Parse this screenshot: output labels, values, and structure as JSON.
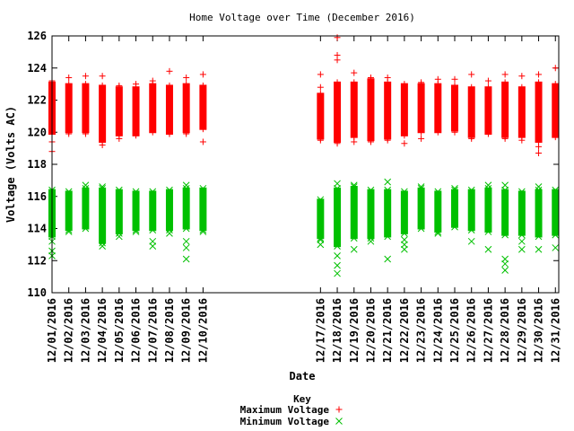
{
  "chart_data": {
    "type": "scatter",
    "title": "Home Voltage over Time (December 2016)",
    "xlabel": "Date",
    "ylabel": "Voltage (Volts AC)",
    "ylim": [
      110,
      126
    ],
    "yticks": [
      "110",
      "112",
      "114",
      "116",
      "118",
      "120",
      "122",
      "124",
      "126"
    ],
    "categories": [
      "12/01/2016",
      "12/02/2016",
      "12/03/2016",
      "12/04/2016",
      "12/05/2016",
      "12/06/2016",
      "12/07/2016",
      "12/08/2016",
      "12/09/2016",
      "12/10/2016",
      "12/17/2016",
      "12/18/2016",
      "12/19/2016",
      "12/20/2016",
      "12/21/2016",
      "12/22/2016",
      "12/23/2016",
      "12/24/2016",
      "12/25/2016",
      "12/26/2016",
      "12/27/2016",
      "12/28/2016",
      "12/29/2016",
      "12/30/2016",
      "12/31/2016"
    ],
    "x_day": [
      1,
      2,
      3,
      4,
      5,
      6,
      7,
      8,
      9,
      10,
      17,
      18,
      19,
      20,
      21,
      22,
      23,
      24,
      25,
      26,
      27,
      28,
      29,
      30,
      31
    ],
    "xlim_day": [
      1,
      31.2
    ],
    "legend": {
      "title": "Key",
      "placement": "bottom-center"
    },
    "grid": false,
    "series": [
      {
        "name": "Maximum Voltage",
        "color": "#ff0000",
        "marker": "plus",
        "low": [
          119.9,
          120.0,
          120.0,
          119.4,
          119.8,
          119.8,
          120.0,
          119.9,
          120.0,
          120.2,
          119.6,
          119.4,
          119.7,
          119.5,
          119.6,
          119.8,
          120.0,
          120.0,
          120.1,
          119.7,
          119.9,
          119.7,
          119.7,
          119.4,
          119.7
        ],
        "high": [
          123.1,
          123.0,
          123.0,
          122.9,
          122.8,
          122.8,
          123.0,
          122.9,
          123.0,
          122.9,
          122.4,
          123.1,
          123.1,
          123.3,
          123.1,
          123.0,
          123.0,
          123.0,
          122.9,
          122.8,
          122.8,
          123.1,
          122.8,
          123.1,
          123.0
        ],
        "outliers": [
          [
            1,
            118.8
          ],
          [
            1,
            119.4
          ],
          [
            1,
            123.2
          ],
          [
            2,
            123.4
          ],
          [
            2,
            119.9
          ],
          [
            3,
            123.5
          ],
          [
            3,
            119.9
          ],
          [
            4,
            123.5
          ],
          [
            4,
            119.2
          ],
          [
            5,
            122.9
          ],
          [
            5,
            119.6
          ],
          [
            6,
            123.0
          ],
          [
            7,
            123.2
          ],
          [
            8,
            123.8
          ],
          [
            8,
            119.9
          ],
          [
            9,
            123.4
          ],
          [
            9,
            119.9
          ],
          [
            10,
            123.6
          ],
          [
            10,
            119.4
          ],
          [
            17,
            123.6
          ],
          [
            17,
            122.8
          ],
          [
            17,
            119.5
          ],
          [
            18,
            125.9
          ],
          [
            18,
            124.8
          ],
          [
            18,
            124.5
          ],
          [
            18,
            119.3
          ],
          [
            19,
            123.7
          ],
          [
            19,
            119.4
          ],
          [
            20,
            123.4
          ],
          [
            20,
            119.4
          ],
          [
            21,
            123.4
          ],
          [
            21,
            119.5
          ],
          [
            22,
            119.3
          ],
          [
            23,
            123.1
          ],
          [
            23,
            119.6
          ],
          [
            24,
            123.3
          ],
          [
            25,
            123.3
          ],
          [
            25,
            120.0
          ],
          [
            26,
            123.6
          ],
          [
            26,
            119.6
          ],
          [
            27,
            123.2
          ],
          [
            28,
            123.6
          ],
          [
            28,
            119.6
          ],
          [
            29,
            123.5
          ],
          [
            29,
            119.5
          ],
          [
            30,
            123.6
          ],
          [
            30,
            118.7
          ],
          [
            30,
            119.1
          ],
          [
            31,
            124.0
          ]
        ]
      },
      {
        "name": "Minimum Voltage",
        "color": "#00c000",
        "marker": "cross",
        "low": [
          113.5,
          113.9,
          114.0,
          113.1,
          113.7,
          113.9,
          113.9,
          113.9,
          114.0,
          113.9,
          113.4,
          112.9,
          113.4,
          113.4,
          113.5,
          113.7,
          114.0,
          113.8,
          114.1,
          113.9,
          113.8,
          113.6,
          113.6,
          113.5,
          113.6
        ],
        "high": [
          116.4,
          116.3,
          116.5,
          116.5,
          116.4,
          116.3,
          116.3,
          116.4,
          116.5,
          116.5,
          115.8,
          116.5,
          116.6,
          116.4,
          116.4,
          116.3,
          116.5,
          116.3,
          116.4,
          116.4,
          116.5,
          116.4,
          116.3,
          116.4,
          116.4
        ],
        "outliers": [
          [
            1,
            112.3
          ],
          [
            1,
            112.6
          ],
          [
            1,
            113.2
          ],
          [
            2,
            113.8
          ],
          [
            3,
            116.7
          ],
          [
            4,
            112.9
          ],
          [
            4,
            116.6
          ],
          [
            5,
            113.5
          ],
          [
            6,
            113.8
          ],
          [
            7,
            112.9
          ],
          [
            7,
            113.2
          ],
          [
            8,
            113.7
          ],
          [
            9,
            113.2
          ],
          [
            9,
            112.8
          ],
          [
            9,
            112.1
          ],
          [
            9,
            116.7
          ],
          [
            10,
            113.8
          ],
          [
            17,
            113.0
          ],
          [
            17,
            113.3
          ],
          [
            18,
            111.2
          ],
          [
            18,
            111.7
          ],
          [
            18,
            112.3
          ],
          [
            18,
            116.8
          ],
          [
            19,
            112.7
          ],
          [
            19,
            116.7
          ],
          [
            20,
            113.2
          ],
          [
            21,
            112.1
          ],
          [
            21,
            116.9
          ],
          [
            22,
            113.0
          ],
          [
            22,
            112.7
          ],
          [
            22,
            113.3
          ],
          [
            23,
            116.6
          ],
          [
            24,
            113.7
          ],
          [
            25,
            116.5
          ],
          [
            26,
            113.2
          ],
          [
            27,
            112.7
          ],
          [
            27,
            116.7
          ],
          [
            28,
            111.4
          ],
          [
            28,
            111.8
          ],
          [
            28,
            112.1
          ],
          [
            28,
            116.7
          ],
          [
            29,
            112.7
          ],
          [
            29,
            113.2
          ],
          [
            30,
            112.7
          ],
          [
            30,
            116.6
          ],
          [
            31,
            112.8
          ]
        ]
      }
    ]
  }
}
